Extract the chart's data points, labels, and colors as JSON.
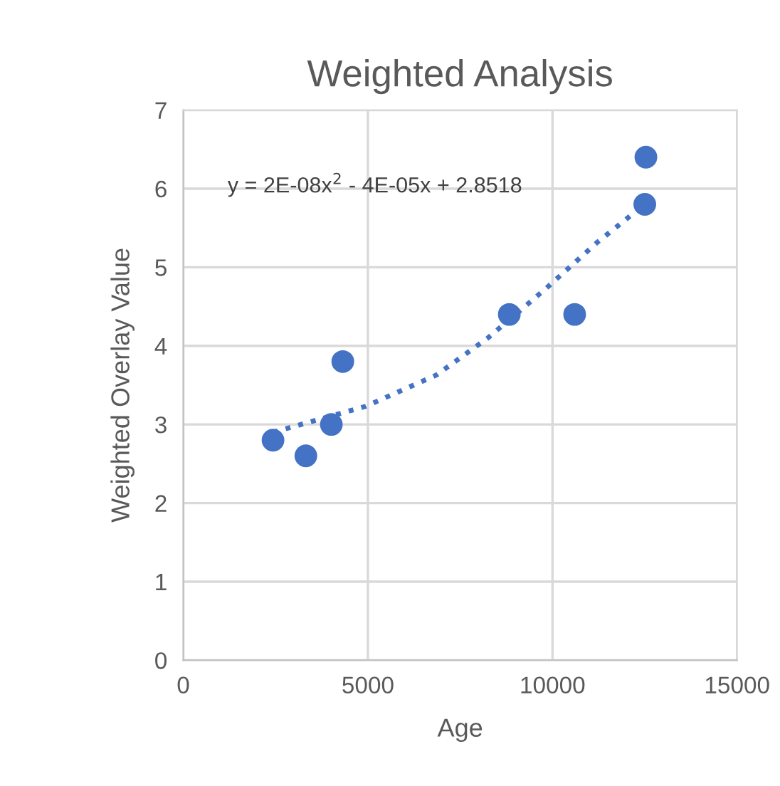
{
  "chart_data": {
    "type": "scatter",
    "title": "Weighted Analysis",
    "xlabel": "Age",
    "ylabel": "Weighted Overlay Value",
    "annotations": [
      "y = 2E-08x$^{2}$ - 4E-05x + 2.8518"
    ],
    "series": [
      {
        "color": "#4472c4",
        "x": [
          2430,
          3320,
          4010,
          4320,
          8830,
          10600,
          12530,
          12500
        ],
        "values": [
          2.8,
          2.6,
          3.0,
          3.8,
          4.4,
          4.4,
          6.4,
          5.8
        ],
        "marker": "circle"
      },
      {
        "type": "line",
        "color": "#4472c4",
        "x": [
          2430,
          4940,
          6860,
          8250,
          9800,
          11220,
          12500
        ],
        "values": [
          2.9,
          3.23,
          3.63,
          4.1,
          4.72,
          5.32,
          5.8
        ],
        "line_style": "dotted",
        "marker": "none"
      }
    ],
    "xlim": [
      0,
      15000
    ],
    "xticks": [
      0,
      5000,
      10000,
      15000
    ],
    "ylim": [
      0,
      7
    ],
    "yticks": [
      0,
      1,
      2,
      3,
      4,
      5,
      6,
      7
    ],
    "grid": true,
    "legend": false
  }
}
